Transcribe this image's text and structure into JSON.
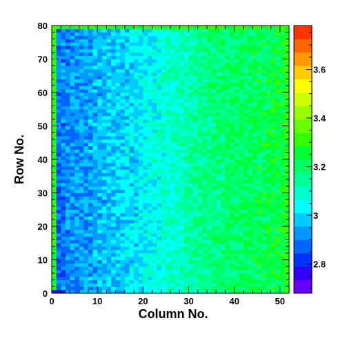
{
  "chart_data": {
    "type": "heatmap",
    "title": "",
    "xlabel": "Column No.",
    "ylabel": "Row No.",
    "xlim": [
      0,
      52
    ],
    "ylim": [
      0,
      80
    ],
    "x_ticks": [
      0,
      10,
      20,
      30,
      40,
      50
    ],
    "y_ticks": [
      0,
      10,
      20,
      30,
      40,
      50,
      60,
      70,
      80
    ],
    "n_columns": 52,
    "n_rows": 80,
    "z_range": [
      2.68,
      3.78
    ],
    "colorbar_ticks": [
      "2.8",
      "3",
      "3.2",
      "3.4",
      "3.6"
    ],
    "colorbar_tick_values": [
      2.8,
      3.0,
      3.2,
      3.4,
      3.6
    ],
    "colormap": [
      "#6600ff",
      "#3300ff",
      "#0033ff",
      "#0066ff",
      "#0099ff",
      "#00ccff",
      "#00ffff",
      "#00ffcc",
      "#00ff99",
      "#00ff66",
      "#00ff33",
      "#33ff00",
      "#66ff00",
      "#99ff00",
      "#ccff00",
      "#ffff00",
      "#ffcc00",
      "#ff9900",
      "#ff6600",
      "#ff3300"
    ],
    "trend": "values rise from ~2.85 at column 0 to ~3.25 at column 52; edge columns/rows elevated (~3.3)",
    "profile_by_column": {
      "columns": [
        0,
        5,
        10,
        15,
        20,
        25,
        30,
        35,
        40,
        45,
        51
      ],
      "mean_values": [
        2.87,
        2.92,
        2.96,
        2.99,
        3.03,
        3.08,
        3.13,
        3.17,
        3.2,
        3.22,
        3.24
      ]
    },
    "edge_value": 3.3
  }
}
